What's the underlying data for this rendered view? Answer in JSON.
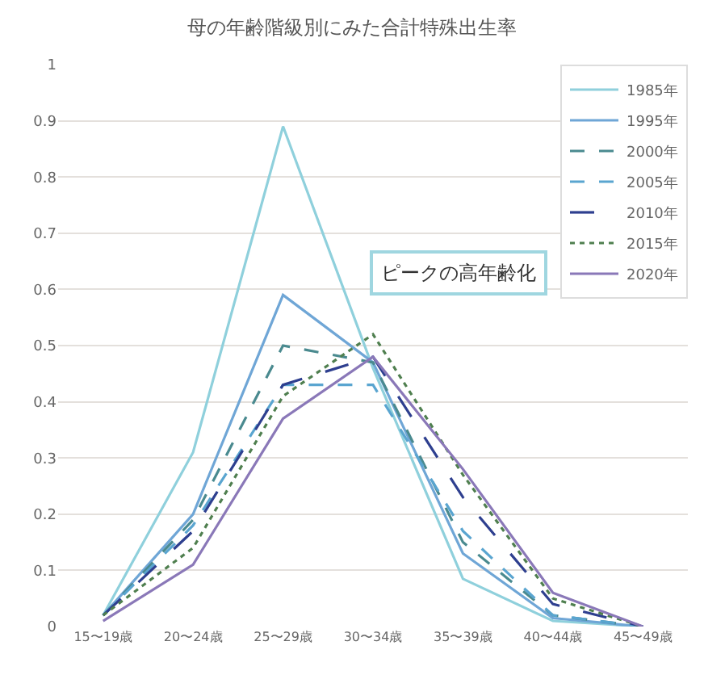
{
  "chart_data": {
    "type": "line",
    "title": "母の年齢階級別にみた合計特殊出生率",
    "categories": [
      "15〜19歳",
      "20〜24歳",
      "25〜29歳",
      "30〜34歳",
      "35〜39歳",
      "40〜44歳",
      "45〜49歳"
    ],
    "series": [
      {
        "name": "1985年",
        "color": "#8fd0dc",
        "line_style": "solid",
        "values": [
          0.02,
          0.31,
          0.89,
          0.46,
          0.085,
          0.01,
          0.0
        ]
      },
      {
        "name": "1995年",
        "color": "#6fa6d6",
        "line_style": "solid",
        "values": [
          0.02,
          0.2,
          0.59,
          0.47,
          0.13,
          0.015,
          0.0
        ]
      },
      {
        "name": "2000年",
        "color": "#4a8a8f",
        "line_style": "dashed",
        "values": [
          0.02,
          0.19,
          0.5,
          0.47,
          0.15,
          0.02,
          0.0
        ]
      },
      {
        "name": "2005年",
        "color": "#5aa5d0",
        "line_style": "dashed",
        "values": [
          0.02,
          0.18,
          0.43,
          0.43,
          0.17,
          0.02,
          0.0
        ]
      },
      {
        "name": "2010年",
        "color": "#2e3f8f",
        "line_style": "longdash",
        "values": [
          0.02,
          0.17,
          0.43,
          0.48,
          0.23,
          0.04,
          0.0
        ]
      },
      {
        "name": "2015年",
        "color": "#4f7f4f",
        "line_style": "dotted",
        "values": [
          0.02,
          0.14,
          0.41,
          0.52,
          0.27,
          0.05,
          0.0
        ]
      },
      {
        "name": "2020年",
        "color": "#8a78b8",
        "line_style": "solid",
        "values": [
          0.01,
          0.11,
          0.37,
          0.48,
          0.28,
          0.06,
          0.0
        ]
      }
    ],
    "ylim": [
      0,
      1
    ],
    "yticks": [
      0,
      0.1,
      0.2,
      0.3,
      0.4,
      0.5,
      0.6,
      0.7,
      0.8,
      0.9,
      1
    ],
    "grid": "y",
    "legend": "top right",
    "marker": "none",
    "annotations": [
      "ピークの高年齢化"
    ]
  }
}
